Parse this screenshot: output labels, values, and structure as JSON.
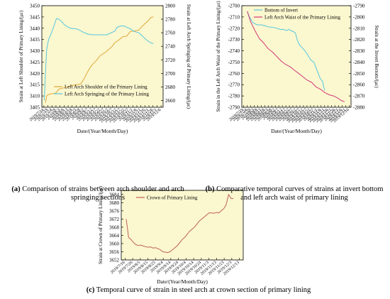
{
  "chart_data": [
    {
      "panel": "a",
      "type": "line",
      "caption_label": "(a)",
      "caption": "Comparison of strains between arch shoulder and arch springing sections",
      "xlabel": "Date/(Year/Month/Day)",
      "ylabel_left": "Strain at Left Shoulder of Primary Lining/(με)",
      "ylabel_right": "Strain at Left Arch Springing of Primary Lining/(με)",
      "ylim_left": [
        3405,
        3450
      ],
      "yticks_left": [
        "3405",
        "3410",
        "3415",
        "3420",
        "3425",
        "3430",
        "3435",
        "3440",
        "3445",
        "3450"
      ],
      "ylim_right": [
        2650,
        2800
      ],
      "yticks_right": [
        "2660",
        "2680",
        "2700",
        "2720",
        "2740",
        "2760",
        "2780",
        "2800"
      ],
      "xlim": [
        0,
        100
      ],
      "xticks": [
        "2019/7/14",
        "2019/7/19",
        "2019/7/24",
        "2019/7/29",
        "2019/8/3",
        "2019/8/8",
        "2019/8/13",
        "2019/8/18",
        "2019/8/23",
        "2019/8/28",
        "2019/9/2",
        "2019/9/7",
        "2019/9/12",
        "2019/9/17",
        "2019/9/22",
        "2019/9/27",
        "2019/10/2",
        "2019/10/7",
        "2019/10/12",
        "2019/10/17",
        "2019/10/22",
        "2019/10/27",
        "2019/11/1",
        "2019/11/6",
        "2019/11/11",
        "2019/11/16",
        "2019/11/21",
        "2019/11/26",
        "2019/12/1",
        "2019/12/6"
      ],
      "legend_position": "bottom-right",
      "series": [
        {
          "name": "Left Arch Shoulder of the Primary Lining",
          "color": "#e0a93a",
          "axis": "left",
          "x": [
            3,
            4,
            5,
            8,
            10,
            12,
            14,
            16,
            18,
            22,
            25,
            28,
            32,
            35,
            38,
            41,
            45,
            48,
            52,
            56,
            58,
            60,
            64,
            67,
            70,
            73,
            76,
            80,
            83,
            86,
            88,
            90,
            92
          ],
          "y": [
            3407,
            3410,
            3410.5,
            3411,
            3411,
            3411.5,
            3413,
            3413.3,
            3413.6,
            3414.2,
            3414.7,
            3415,
            3415.3,
            3417.7,
            3421,
            3423.5,
            3425.7,
            3427.8,
            3429.2,
            3431,
            3432,
            3433.5,
            3435,
            3436.3,
            3436.5,
            3438.6,
            3438.7,
            3439.2,
            3441,
            3442.5,
            3443.5,
            3444.8,
            3445
          ]
        },
        {
          "name": "Left Arch Springing of the Primary Lining",
          "color": "#55c8e0",
          "axis": "right",
          "x": [
            2,
            3,
            4,
            5,
            6,
            8,
            10,
            12,
            14,
            16,
            18,
            20,
            22,
            25,
            28,
            31,
            34,
            38,
            42,
            46,
            50,
            53,
            55,
            57,
            60,
            62,
            65,
            68,
            70,
            73,
            76,
            78,
            80,
            83,
            86,
            88,
            90,
            92
          ],
          "y": [
            2660,
            2700,
            2735,
            2745,
            2752,
            2760,
            2770,
            2781,
            2780,
            2777,
            2773,
            2770,
            2768,
            2766,
            2766,
            2764,
            2761,
            2758,
            2757,
            2757,
            2757,
            2757,
            2758,
            2760,
            2762,
            2768,
            2770,
            2770,
            2768,
            2766,
            2762,
            2761,
            2760,
            2755,
            2750,
            2747,
            2745,
            2744
          ]
        }
      ]
    },
    {
      "panel": "b",
      "type": "line",
      "caption_label": "(b)",
      "caption": "Comparative temporal curves of strains at invert bottom and left arch waist of primary lining",
      "xlabel": "Date/(Year/Month/Day)",
      "ylabel_left": "Strain in the Left Arch Waist of the Primary Lining/(με)",
      "ylabel_right": "Strain at the Invert Bottom/(με)",
      "ylim_left": [
        -2790,
        -2700
      ],
      "yticks_left": [
        "-2790",
        "-2780",
        "-2770",
        "-2760",
        "-2750",
        "-2740",
        "-2730",
        "-2720",
        "-2710",
        "-2700"
      ],
      "ylim_right": [
        -2880,
        -2790
      ],
      "yticks_right": [
        "-2880",
        "-2870",
        "-2860",
        "-2850",
        "-2840",
        "-2830",
        "-2820",
        "-2810",
        "-2800",
        "-2790"
      ],
      "xlim": [
        0,
        100
      ],
      "xticks": [
        "2019/7/19",
        "2019/7/24",
        "2019/7/29",
        "2019/8/3",
        "2019/8/8",
        "2019/8/13",
        "2019/8/18",
        "2019/8/23",
        "2019/8/28",
        "2019/9/2",
        "2019/9/7",
        "2019/9/12",
        "2019/9/17",
        "2019/9/22",
        "2019/9/27",
        "2019/10/2",
        "2019/10/7",
        "2019/10/12",
        "2019/10/17",
        "2019/10/22",
        "2019/10/27",
        "2019/11/1",
        "2019/11/6",
        "2019/11/11",
        "2019/11/16",
        "2019/11/21",
        "2019/11/26",
        "2019/12/1",
        "2019/12/6",
        "2019/12/11",
        "2019/12/16"
      ],
      "legend_position": "top-right",
      "series": [
        {
          "name": "Bottom of Invert",
          "color": "#55c8e0",
          "axis": "right",
          "x": [
            5,
            7,
            10,
            14,
            18,
            22,
            25,
            28,
            32,
            35,
            38,
            41,
            43,
            45,
            47,
            49,
            51,
            53,
            55,
            57,
            60,
            63,
            66,
            68,
            70,
            72,
            74,
            75,
            76
          ],
          "y": [
            -2795,
            -2800,
            -2805,
            -2807,
            -2807,
            -2808,
            -2809,
            -2809,
            -2810,
            -2811,
            -2811,
            -2812,
            -2811,
            -2812,
            -2813,
            -2814,
            -2821,
            -2825,
            -2827,
            -2829,
            -2833,
            -2838,
            -2840,
            -2845,
            -2850,
            -2855,
            -2857,
            -2862,
            -2865
          ]
        },
        {
          "name": "Left Arch Waist of the Primary Lining",
          "color": "#d03a78",
          "axis": "left",
          "x": [
            5,
            8,
            12,
            16,
            20,
            24,
            28,
            32,
            36,
            40,
            44,
            48,
            52,
            56,
            60,
            64,
            68,
            72,
            76,
            80,
            84,
            88,
            91,
            94
          ],
          "y": [
            -2705,
            -2714,
            -2722,
            -2729,
            -2733,
            -2738,
            -2741,
            -2745,
            -2749,
            -2752,
            -2754,
            -2757,
            -2760,
            -2763,
            -2766,
            -2768,
            -2772,
            -2774,
            -2777,
            -2779,
            -2780,
            -2782,
            -2784,
            -2785
          ]
        }
      ]
    },
    {
      "panel": "c",
      "type": "line",
      "caption_label": "(c)",
      "caption": "Temporal curve of strain in steel arch at crown section of primary lining",
      "xlabel": "Date/(Year/Month/Day)",
      "ylabel_left": "Strain at Crown of Primary Lining/(με)",
      "ylim_left": [
        3652,
        3686
      ],
      "yticks_left": [
        "3652",
        "3656",
        "3660",
        "3664",
        "3668",
        "3672",
        "3676",
        "3680",
        "3684"
      ],
      "xlim": [
        0,
        100
      ],
      "xticks": [
        "2019/7/16",
        "2019/7/26",
        "2019/8/5",
        "2019/8/15",
        "2019/8/25",
        "2019/9/4",
        "2019/9/14",
        "2019/9/24",
        "2019/10/4",
        "2019/10/14",
        "2019/10/24",
        "2019/11/3",
        "2019/11/13",
        "2019/11/23",
        "2019/12/3",
        "2019/12/13"
      ],
      "legend_position": "top-left",
      "series": [
        {
          "name": "Crown of Primary Lining",
          "color": "#c0605a",
          "axis": "left",
          "x": [
            4,
            5,
            6,
            7,
            8,
            10,
            12,
            14,
            16,
            18,
            20,
            22,
            24,
            26,
            28,
            30,
            32,
            34,
            36,
            38,
            40,
            42,
            44,
            46,
            48,
            50,
            52,
            54,
            56,
            58,
            60,
            62,
            64,
            66,
            68,
            70,
            72,
            74,
            76,
            78,
            80,
            82,
            84,
            86,
            88,
            90,
            92
          ],
          "y": [
            3672,
            3668,
            3663,
            3662.5,
            3662,
            3660.5,
            3659.5,
            3659,
            3659.3,
            3658.8,
            3658.5,
            3658.2,
            3658.4,
            3657.8,
            3658,
            3657.5,
            3657,
            3656,
            3655.8,
            3655.6,
            3656,
            3657,
            3658,
            3659,
            3660.5,
            3662,
            3663,
            3664.5,
            3666,
            3667,
            3668,
            3669.5,
            3671,
            3672,
            3673,
            3674,
            3675,
            3675,
            3674.8,
            3675.2,
            3675,
            3676,
            3677,
            3679,
            3684,
            3682,
            3682
          ]
        }
      ]
    }
  ]
}
